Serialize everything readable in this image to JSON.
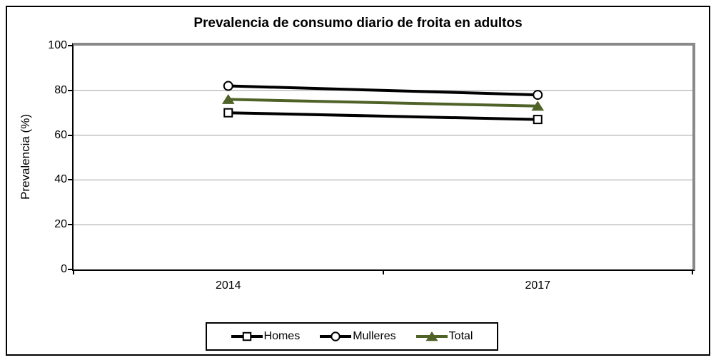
{
  "chart_data": {
    "type": "line",
    "title": "Prevalencia de consumo diario de froita en adultos",
    "xlabel": "",
    "ylabel": "Prevalencia (%)",
    "categories": [
      "2014",
      "2017"
    ],
    "series": [
      {
        "name": "Homes",
        "values": [
          70,
          67
        ],
        "color": "#000000",
        "marker": "square",
        "marker_fill": "#ffffff"
      },
      {
        "name": "Mulleres",
        "values": [
          82,
          78
        ],
        "color": "#000000",
        "marker": "circle",
        "marker_fill": "#ffffff"
      },
      {
        "name": "Total",
        "values": [
          76,
          73
        ],
        "color": "#4f6228",
        "marker": "triangle",
        "marker_fill": "#4f6228"
      }
    ],
    "ylim": [
      0,
      100
    ],
    "yticks": [
      0,
      20,
      40,
      60,
      80,
      100
    ],
    "grid": true,
    "legend_position": "bottom",
    "legend": [
      "Homes",
      "Mulleres",
      "Total"
    ],
    "colors": {
      "gridline": "#a0a0a0",
      "plot_border_gray": "#898989",
      "axis_black": "#000000",
      "background": "#ffffff"
    }
  }
}
